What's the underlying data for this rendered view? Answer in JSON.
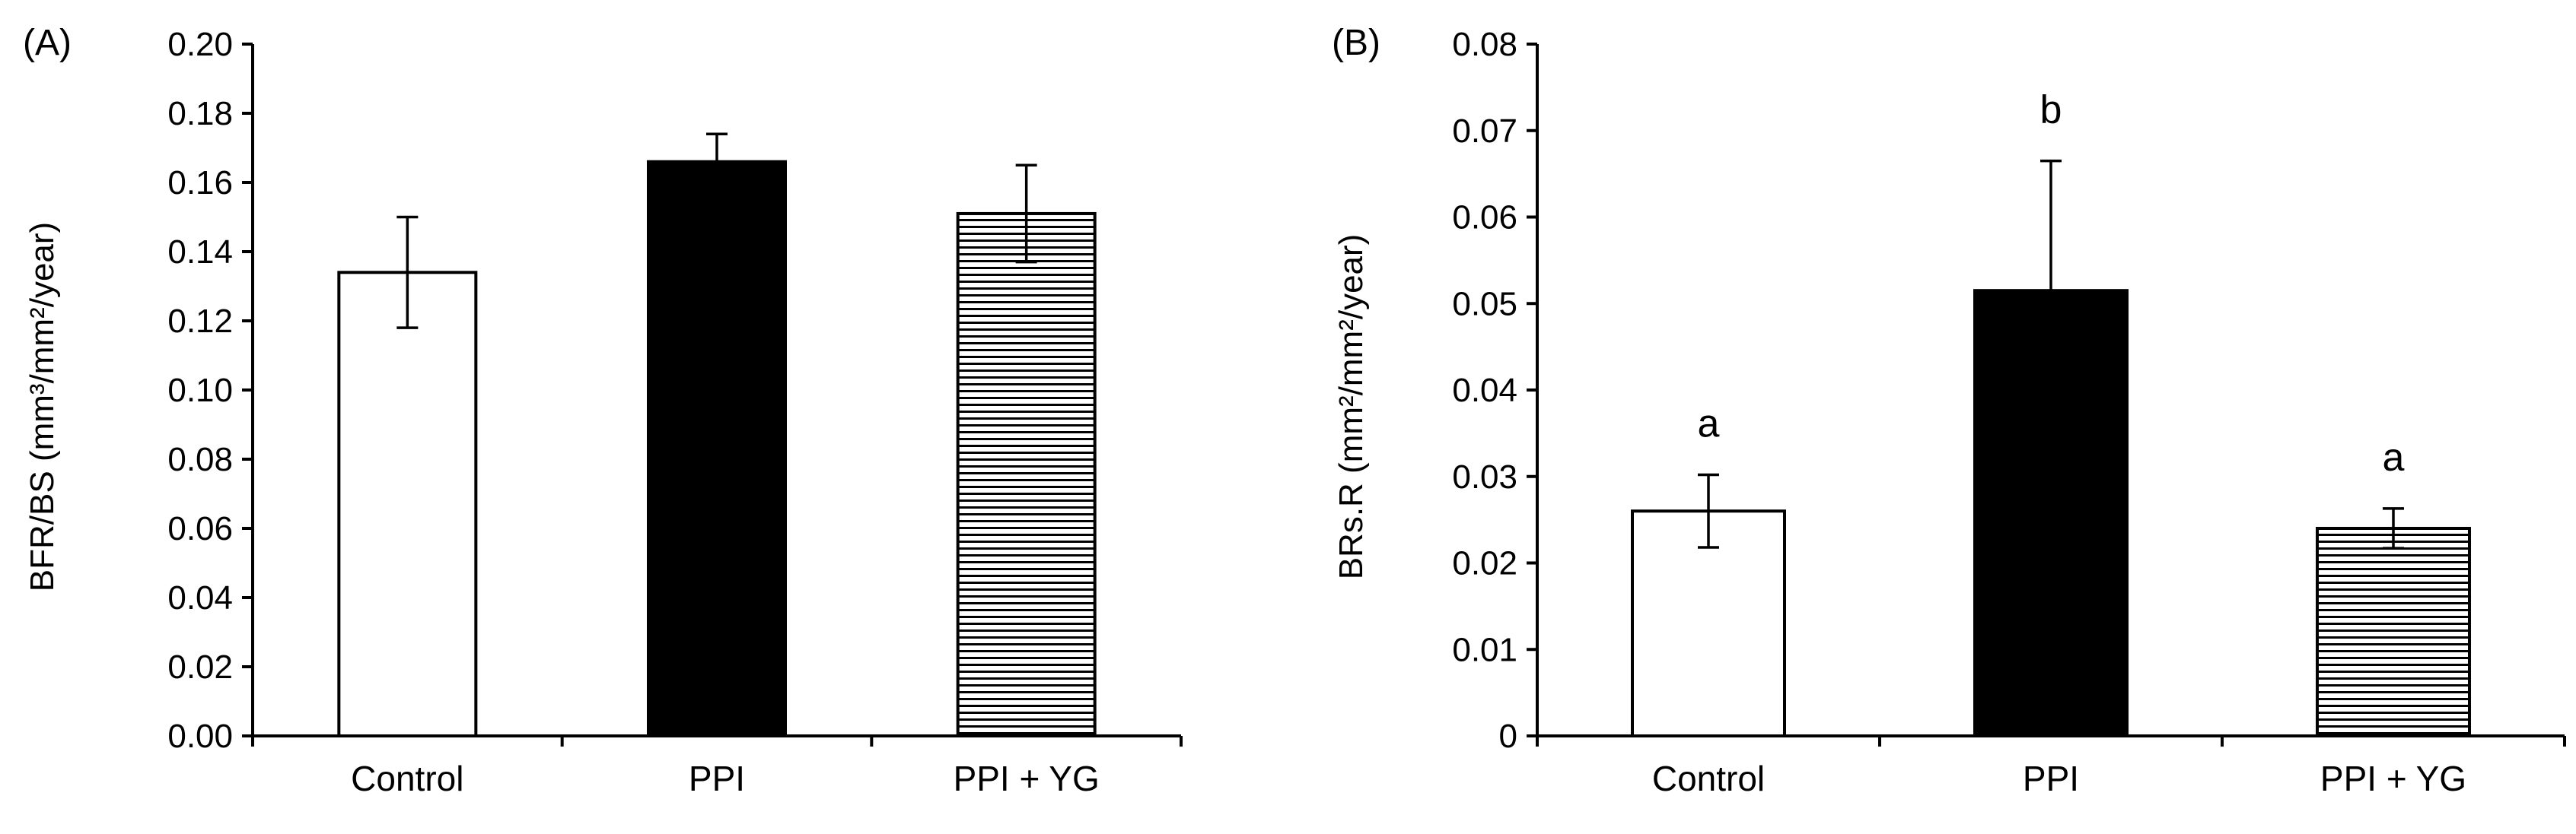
{
  "chart_data": [
    {
      "type": "bar",
      "panel_label": "(A)",
      "categories": [
        "Control",
        "PPI",
        "PPI + YG"
      ],
      "values": [
        0.134,
        0.166,
        0.151
      ],
      "errors": [
        0.016,
        0.008,
        0.014
      ],
      "fills": [
        "white",
        "black",
        "hlines"
      ],
      "significance": [],
      "ylabel": "BFR/BS (mm³/mm²/year)",
      "ylim": [
        0,
        0.2
      ],
      "yticks": [
        "0.00",
        "0.02",
        "0.04",
        "0.06",
        "0.08",
        "0.10",
        "0.12",
        "0.14",
        "0.16",
        "0.18",
        "0.20"
      ]
    },
    {
      "type": "bar",
      "panel_label": "(B)",
      "categories": [
        "Control",
        "PPI",
        "PPI + YG"
      ],
      "values": [
        0.026,
        0.0515,
        0.024
      ],
      "errors": [
        0.0042,
        0.015,
        0.0023
      ],
      "fills": [
        "white",
        "black",
        "hlines"
      ],
      "significance": [
        "a",
        "b",
        "a"
      ],
      "ylabel": "BRs.R (mm²/mm²/year)",
      "ylim": [
        0,
        0.08
      ],
      "yticks": [
        "0",
        "0.01",
        "0.02",
        "0.03",
        "0.04",
        "0.05",
        "0.06",
        "0.07",
        "0.08"
      ]
    }
  ],
  "colors": {
    "axis": "#000000",
    "bar_white": "#ffffff",
    "bar_black": "#000000"
  }
}
